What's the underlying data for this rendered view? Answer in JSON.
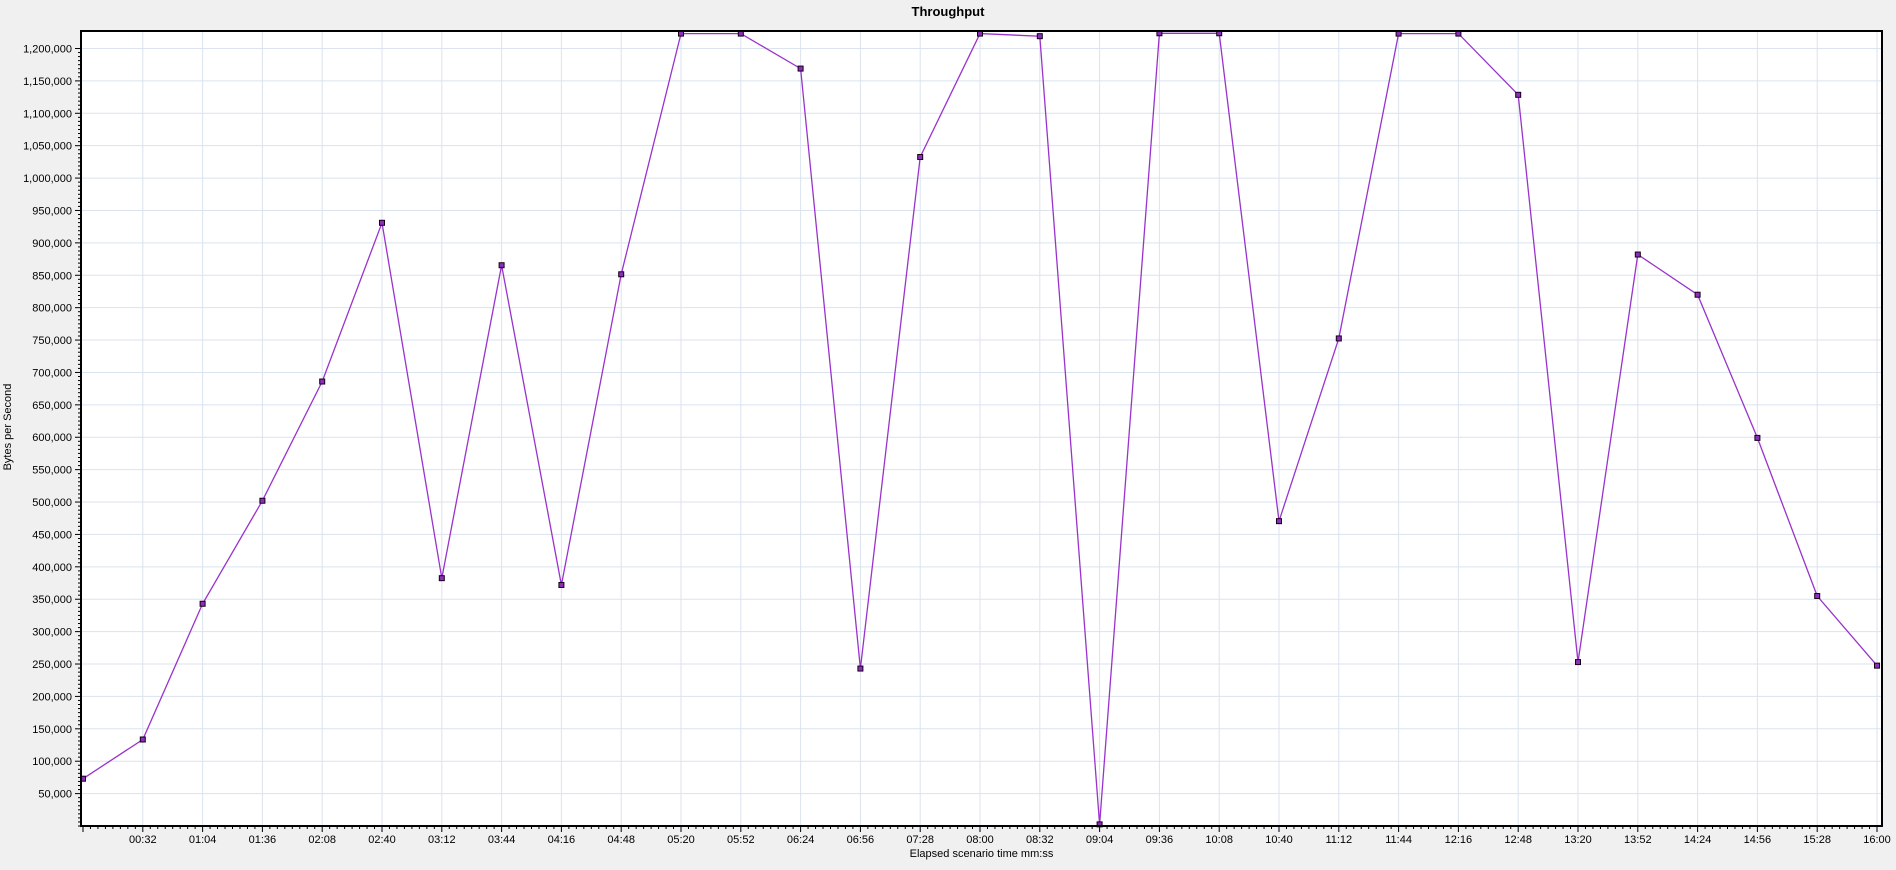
{
  "window": {
    "outer_background": "#f0f0f0",
    "plot_background": "#ffffff",
    "axis_color": "#000000"
  },
  "chart_data": {
    "type": "line",
    "title": "Throughput",
    "xlabel": "Elapsed scenario time mm:ss",
    "ylabel": "Bytes per Second",
    "legend": "none",
    "grid": true,
    "grid_color": "#dbe3ef",
    "series_color": "#9933cc",
    "marker_fill": "#8b2fbb",
    "marker_border": "#150018",
    "ylim": [
      0,
      1227000
    ],
    "y_tick_step": 50000,
    "x_minor_divisions": 8,
    "y_minor_divisions": 8,
    "y_tick_labels": [
      "50,000",
      "100,000",
      "150,000",
      "200,000",
      "250,000",
      "300,000",
      "350,000",
      "400,000",
      "450,000",
      "500,000",
      "550,000",
      "600,000",
      "650,000",
      "700,000",
      "750,000",
      "800,000",
      "850,000",
      "900,000",
      "950,000",
      "1,000,000",
      "1,050,000",
      "1,100,000",
      "1,150,000",
      "1,200,000"
    ],
    "x_tick_labels": [
      "00:32",
      "01:04",
      "01:36",
      "02:08",
      "02:40",
      "03:12",
      "03:44",
      "04:16",
      "04:48",
      "05:20",
      "05:52",
      "06:24",
      "06:56",
      "07:28",
      "08:00",
      "08:32",
      "09:04",
      "09:36",
      "10:08",
      "10:40",
      "11:12",
      "11:44",
      "12:16",
      "12:48",
      "13:20",
      "13:52",
      "14:24",
      "14:56",
      "15:28",
      "16:00"
    ],
    "x": [
      "00:00",
      "00:32",
      "01:04",
      "01:36",
      "02:08",
      "02:40",
      "03:12",
      "03:44",
      "04:16",
      "04:48",
      "05:20",
      "05:52",
      "06:24",
      "06:56",
      "07:28",
      "08:00",
      "08:32",
      "09:04",
      "09:36",
      "10:08",
      "10:40",
      "11:12",
      "11:44",
      "12:16",
      "12:48",
      "13:20",
      "13:52",
      "14:24",
      "14:56",
      "15:28",
      "16:00"
    ],
    "values": [
      73000,
      133500,
      343000,
      502000,
      686000,
      931000,
      382500,
      865500,
      372000,
      851500,
      1223000,
      1223000,
      1169000,
      243000,
      1032500,
      1223000,
      1219000,
      2500,
      1223500,
      1223500,
      470500,
      752500,
      1223000,
      1223000,
      1128500,
      253000,
      882000,
      820000,
      599000,
      355000,
      247500
    ]
  }
}
